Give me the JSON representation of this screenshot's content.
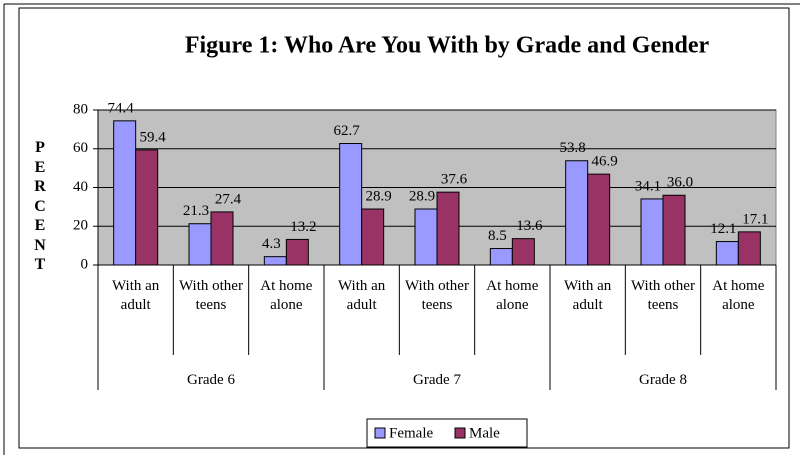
{
  "chart_data": {
    "type": "bar",
    "title": "Figure 1: Who Are You With by Grade and Gender",
    "y_label": "PERCENT",
    "categories": [
      "With an adult",
      "With other teens",
      "At home alone",
      "With an adult",
      "With other teens",
      "At home alone",
      "With an adult",
      "With other teens",
      "At home alone"
    ],
    "groups": [
      "Grade 6",
      "Grade 7",
      "Grade 8"
    ],
    "series": [
      {
        "name": "Female",
        "color": "#9999ff",
        "values": [
          74.4,
          21.3,
          4.3,
          62.7,
          28.9,
          8.5,
          53.8,
          34.1,
          12.1
        ],
        "value_labels": [
          "74.4",
          "21.3",
          "4.3",
          "62.7",
          "28.9",
          "8.5",
          "53.8",
          "34.1",
          "12.1"
        ]
      },
      {
        "name": "Male",
        "color": "#993366",
        "values": [
          59.4,
          27.4,
          13.2,
          28.9,
          37.6,
          13.6,
          46.9,
          36.0,
          17.1
        ],
        "value_labels": [
          "59.4",
          "27.4",
          "13.2",
          "28.9",
          "37.6",
          "13.6",
          "46.9",
          "36.0",
          "17.1"
        ]
      }
    ],
    "ylim": [
      0,
      80
    ],
    "yticks": [
      0,
      20,
      40,
      60,
      80
    ],
    "grid": true,
    "plot_background": "#c0c0c0",
    "legend": "bottom"
  }
}
